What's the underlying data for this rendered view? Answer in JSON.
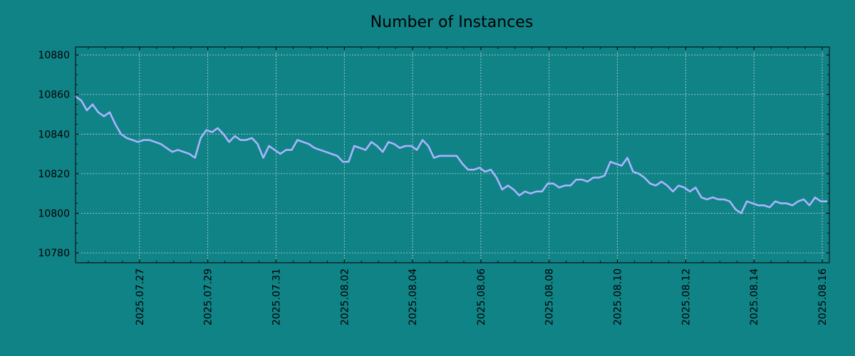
{
  "chart_data": {
    "type": "line",
    "title": "Number of Instances",
    "xlabel": "",
    "ylabel": "",
    "x_tick_labels": [
      "2025.07.27",
      "2025.07.29",
      "2025.07.31",
      "2025.08.02",
      "2025.08.04",
      "2025.08.06",
      "2025.08.08",
      "2025.08.10",
      "2025.08.12",
      "2025.08.14",
      "2025.08.16"
    ],
    "y_tick_labels": [
      "10780",
      "10800",
      "10820",
      "10840",
      "10860",
      "10880"
    ],
    "y_ticks": [
      10780,
      10800,
      10820,
      10840,
      10860,
      10880
    ],
    "ylim": [
      10775,
      10884
    ],
    "xlim": [
      "2025-07-25T03:00",
      "2025-08-16T05:00"
    ],
    "grid": true,
    "legend": "none",
    "colors": {
      "background": "#108387",
      "line": "#a9b4ff",
      "grid": "#b9d7d8",
      "axis": "#000000",
      "text": "#000000"
    },
    "series": [
      {
        "points": [
          [
            "2025-07-25T03:00",
            10859
          ],
          [
            "2025-07-25T07:00",
            10857
          ],
          [
            "2025-07-25T11:00",
            10852
          ],
          [
            "2025-07-25T15:00",
            10855
          ],
          [
            "2025-07-25T19:00",
            10851
          ],
          [
            "2025-07-25T23:00",
            10849
          ],
          [
            "2025-07-26T03:00",
            10851
          ],
          [
            "2025-07-26T07:00",
            10845
          ],
          [
            "2025-07-26T11:00",
            10840
          ],
          [
            "2025-07-26T15:00",
            10838
          ],
          [
            "2025-07-26T19:00",
            10837
          ],
          [
            "2025-07-26T23:00",
            10836
          ],
          [
            "2025-07-27T03:00",
            10837
          ],
          [
            "2025-07-27T07:00",
            10837
          ],
          [
            "2025-07-27T11:00",
            10836
          ],
          [
            "2025-07-27T15:00",
            10835
          ],
          [
            "2025-07-27T19:00",
            10833
          ],
          [
            "2025-07-27T23:00",
            10831
          ],
          [
            "2025-07-28T03:00",
            10832
          ],
          [
            "2025-07-28T07:00",
            10831
          ],
          [
            "2025-07-28T11:00",
            10830
          ],
          [
            "2025-07-28T15:00",
            10828
          ],
          [
            "2025-07-28T19:00",
            10838
          ],
          [
            "2025-07-28T23:00",
            10842
          ],
          [
            "2025-07-29T03:00",
            10841
          ],
          [
            "2025-07-29T07:00",
            10843
          ],
          [
            "2025-07-29T11:00",
            10840
          ],
          [
            "2025-07-29T15:00",
            10836
          ],
          [
            "2025-07-29T19:00",
            10839
          ],
          [
            "2025-07-29T23:00",
            10837
          ],
          [
            "2025-07-30T03:00",
            10837
          ],
          [
            "2025-07-30T07:00",
            10838
          ],
          [
            "2025-07-30T11:00",
            10835
          ],
          [
            "2025-07-30T15:00",
            10828
          ],
          [
            "2025-07-30T19:00",
            10834
          ],
          [
            "2025-07-30T23:00",
            10832
          ],
          [
            "2025-07-31T03:00",
            10830
          ],
          [
            "2025-07-31T07:00",
            10832
          ],
          [
            "2025-07-31T11:00",
            10832
          ],
          [
            "2025-07-31T15:00",
            10837
          ],
          [
            "2025-07-31T19:00",
            10836
          ],
          [
            "2025-07-31T23:00",
            10835
          ],
          [
            "2025-08-01T03:00",
            10833
          ],
          [
            "2025-08-01T07:00",
            10832
          ],
          [
            "2025-08-01T11:00",
            10831
          ],
          [
            "2025-08-01T15:00",
            10830
          ],
          [
            "2025-08-01T19:00",
            10829
          ],
          [
            "2025-08-01T23:00",
            10826
          ],
          [
            "2025-08-02T03:00",
            10826
          ],
          [
            "2025-08-02T07:00",
            10834
          ],
          [
            "2025-08-02T11:00",
            10833
          ],
          [
            "2025-08-02T15:00",
            10832
          ],
          [
            "2025-08-02T19:00",
            10836
          ],
          [
            "2025-08-02T23:00",
            10834
          ],
          [
            "2025-08-03T03:00",
            10831
          ],
          [
            "2025-08-03T07:00",
            10836
          ],
          [
            "2025-08-03T11:00",
            10835
          ],
          [
            "2025-08-03T15:00",
            10833
          ],
          [
            "2025-08-03T19:00",
            10834
          ],
          [
            "2025-08-03T23:00",
            10834
          ],
          [
            "2025-08-04T03:00",
            10832
          ],
          [
            "2025-08-04T07:00",
            10837
          ],
          [
            "2025-08-04T11:00",
            10834
          ],
          [
            "2025-08-04T15:00",
            10828
          ],
          [
            "2025-08-04T19:00",
            10829
          ],
          [
            "2025-08-04T23:00",
            10829
          ],
          [
            "2025-08-05T03:00",
            10829
          ],
          [
            "2025-08-05T07:00",
            10829
          ],
          [
            "2025-08-05T11:00",
            10825
          ],
          [
            "2025-08-05T15:00",
            10822
          ],
          [
            "2025-08-05T19:00",
            10822
          ],
          [
            "2025-08-05T23:00",
            10823
          ],
          [
            "2025-08-06T03:00",
            10821
          ],
          [
            "2025-08-06T07:00",
            10822
          ],
          [
            "2025-08-06T11:00",
            10818
          ],
          [
            "2025-08-06T15:00",
            10812
          ],
          [
            "2025-08-06T19:00",
            10814
          ],
          [
            "2025-08-06T23:00",
            10812
          ],
          [
            "2025-08-07T03:00",
            10809
          ],
          [
            "2025-08-07T07:00",
            10811
          ],
          [
            "2025-08-07T11:00",
            10810
          ],
          [
            "2025-08-07T15:00",
            10811
          ],
          [
            "2025-08-07T19:00",
            10811
          ],
          [
            "2025-08-07T23:00",
            10815
          ],
          [
            "2025-08-08T03:00",
            10815
          ],
          [
            "2025-08-08T07:00",
            10813
          ],
          [
            "2025-08-08T11:00",
            10814
          ],
          [
            "2025-08-08T15:00",
            10814
          ],
          [
            "2025-08-08T19:00",
            10817
          ],
          [
            "2025-08-08T23:00",
            10817
          ],
          [
            "2025-08-09T03:00",
            10816
          ],
          [
            "2025-08-09T07:00",
            10818
          ],
          [
            "2025-08-09T11:00",
            10818
          ],
          [
            "2025-08-09T15:00",
            10819
          ],
          [
            "2025-08-09T19:00",
            10826
          ],
          [
            "2025-08-09T23:00",
            10825
          ],
          [
            "2025-08-10T03:00",
            10824
          ],
          [
            "2025-08-10T07:00",
            10828
          ],
          [
            "2025-08-10T11:00",
            10821
          ],
          [
            "2025-08-10T15:00",
            10820
          ],
          [
            "2025-08-10T19:00",
            10818
          ],
          [
            "2025-08-10T23:00",
            10815
          ],
          [
            "2025-08-11T03:00",
            10814
          ],
          [
            "2025-08-11T07:00",
            10816
          ],
          [
            "2025-08-11T11:00",
            10814
          ],
          [
            "2025-08-11T15:00",
            10811
          ],
          [
            "2025-08-11T19:00",
            10814
          ],
          [
            "2025-08-11T23:00",
            10813
          ],
          [
            "2025-08-12T03:00",
            10811
          ],
          [
            "2025-08-12T07:00",
            10813
          ],
          [
            "2025-08-12T11:00",
            10808
          ],
          [
            "2025-08-12T15:00",
            10807
          ],
          [
            "2025-08-12T19:00",
            10808
          ],
          [
            "2025-08-12T23:00",
            10807
          ],
          [
            "2025-08-13T03:00",
            10807
          ],
          [
            "2025-08-13T07:00",
            10806
          ],
          [
            "2025-08-13T11:00",
            10802
          ],
          [
            "2025-08-13T15:00",
            10800
          ],
          [
            "2025-08-13T19:00",
            10806
          ],
          [
            "2025-08-13T23:00",
            10805
          ],
          [
            "2025-08-14T03:00",
            10804
          ],
          [
            "2025-08-14T07:00",
            10804
          ],
          [
            "2025-08-14T11:00",
            10803
          ],
          [
            "2025-08-14T15:00",
            10806
          ],
          [
            "2025-08-14T19:00",
            10805
          ],
          [
            "2025-08-14T23:00",
            10805
          ],
          [
            "2025-08-15T03:00",
            10804
          ],
          [
            "2025-08-15T07:00",
            10806
          ],
          [
            "2025-08-15T11:00",
            10807
          ],
          [
            "2025-08-15T15:00",
            10804
          ],
          [
            "2025-08-15T19:00",
            10808
          ],
          [
            "2025-08-15T23:00",
            10806
          ],
          [
            "2025-08-16T03:00",
            10806
          ]
        ]
      }
    ]
  }
}
